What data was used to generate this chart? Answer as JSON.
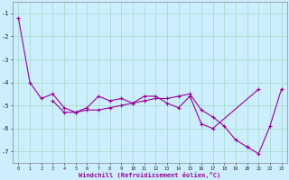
{
  "xlabel": "Windchill (Refroidissement éolien,°C)",
  "background_color": "#cceeff",
  "grid_color": "#aaddcc",
  "line_color": "#990099",
  "xlim": [
    -0.5,
    23.5
  ],
  "ylim": [
    -7.5,
    -0.5
  ],
  "yticks": [
    -7,
    -6,
    -5,
    -4,
    -3,
    -2,
    -1
  ],
  "xticks": [
    0,
    1,
    2,
    3,
    4,
    5,
    6,
    7,
    8,
    9,
    10,
    11,
    12,
    13,
    14,
    15,
    16,
    17,
    18,
    19,
    20,
    21,
    22,
    23
  ],
  "connected_series": [
    {
      "x": [
        0,
        1,
        2,
        3,
        4,
        5,
        6,
        7,
        8,
        9,
        10,
        11,
        12,
        13,
        14,
        15,
        16,
        17,
        21
      ],
      "y": [
        -1.2,
        -4.0,
        -4.7,
        -4.5,
        -5.1,
        -5.3,
        -5.1,
        -4.6,
        -4.8,
        -4.7,
        -4.9,
        -4.6,
        -4.6,
        -4.9,
        -5.1,
        -4.6,
        -5.8,
        -6.0,
        -4.3
      ]
    },
    {
      "x": [
        3,
        4,
        5,
        6,
        7,
        8,
        9,
        10,
        11,
        12,
        13,
        14,
        15,
        16,
        17,
        18,
        19,
        20
      ],
      "y": [
        -4.8,
        -5.3,
        -5.3,
        -5.2,
        -5.2,
        -5.1,
        -5.0,
        -4.9,
        -4.8,
        -4.7,
        -4.7,
        -4.6,
        -4.5,
        -5.2,
        -5.5,
        -5.9,
        -6.5,
        -6.8
      ]
    },
    {
      "x": [
        20,
        21,
        22,
        23
      ],
      "y": [
        -6.8,
        -7.1,
        -5.9,
        -4.3
      ]
    }
  ]
}
